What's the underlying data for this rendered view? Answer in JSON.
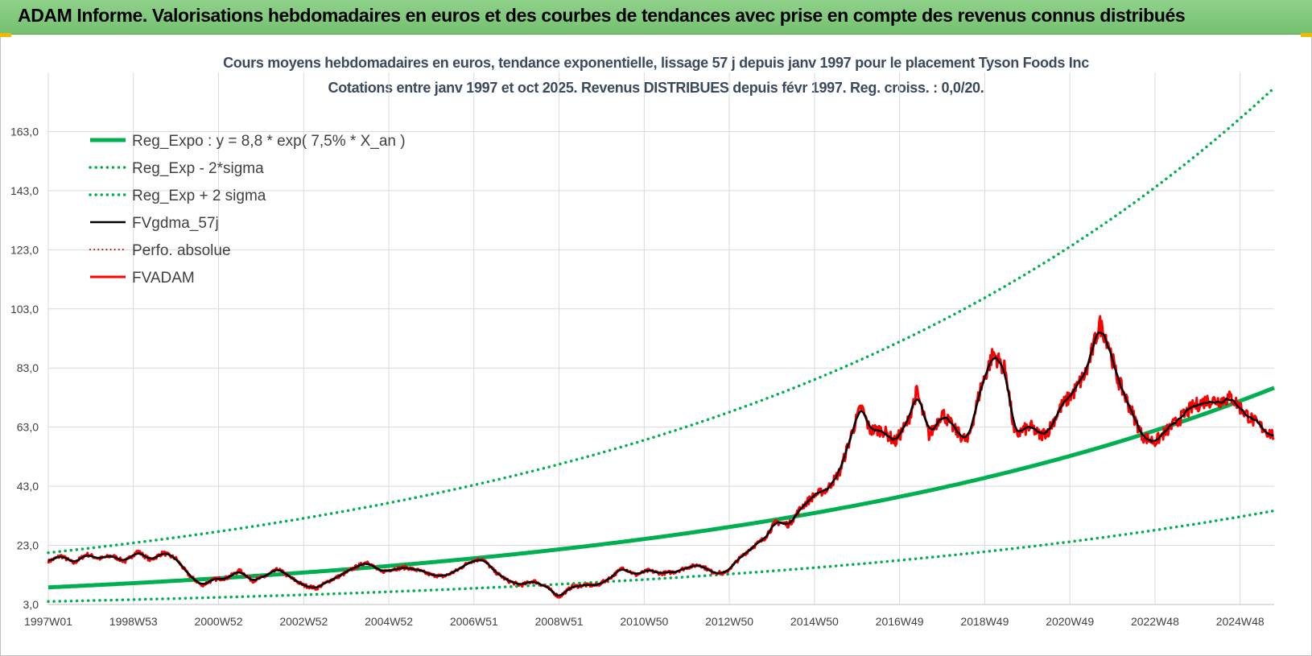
{
  "banner": {
    "title": "ADAM Informe. Valorisations hebdomadaires en euros et des courbes de tendances avec prise en compte des revenus connus distribués"
  },
  "colors": {
    "banner_bg": "#7fc97f",
    "regression": "#00b050",
    "smoothed": "#000000",
    "fvadam": "#ff0000",
    "perfo": "#c00000",
    "grid": "#d9d9d9"
  },
  "chart_data": {
    "type": "line",
    "title": "Cours moyens hebdomadaires en euros, tendance exponentielle, lissage 57 j depuis janv 1997 pour le placement Tyson Foods Inc",
    "subtitle": "Cotations entre janv 1997 et oct 2025. Revenus DISTRIBUES depuis févr 1997. Reg. croiss. : 0,0/20.",
    "xlabel": "",
    "ylabel": "",
    "grid": true,
    "legend_position": "top-left",
    "x_range": [
      1997.0,
      2025.8
    ],
    "ylim": [
      3.0,
      183.0
    ],
    "y_ticks": [
      "3,0",
      "23,0",
      "43,0",
      "63,0",
      "83,0",
      "103,0",
      "123,0",
      "143,0",
      "163,0"
    ],
    "y_tick_values": [
      3,
      23,
      43,
      63,
      83,
      103,
      123,
      143,
      163
    ],
    "x_ticks": [
      "1997W01",
      "1998W53",
      "2000W52",
      "2002W52",
      "2004W52",
      "2006W51",
      "2008W51",
      "2010W50",
      "2012W50",
      "2014W50",
      "2016W49",
      "2018W49",
      "2020W49",
      "2022W48",
      "2024W48"
    ],
    "x_tick_values": [
      1997.0,
      1999.0,
      2001.0,
      2003.0,
      2005.0,
      2007.0,
      2009.0,
      2011.0,
      2013.0,
      2015.0,
      2017.0,
      2019.0,
      2021.0,
      2023.0,
      2025.0
    ],
    "regression": {
      "a": 8.8,
      "rate": 0.075,
      "band_mult_low": 0.455,
      "band_mult_high": 2.33
    },
    "series": [
      {
        "name": "Reg_Expo : y = 8,8 * exp( 7,5% *  X_an )",
        "style": "solid-thick",
        "color": "#00b050",
        "kind": "reg"
      },
      {
        "name": "Reg_Exp - 2*sigma",
        "style": "dotted",
        "color": "#00b050",
        "kind": "low"
      },
      {
        "name": "Reg_Exp + 2 sigma",
        "style": "dotted",
        "color": "#00b050",
        "kind": "high"
      },
      {
        "name": "FVgdma_57j",
        "style": "solid",
        "color": "#000000",
        "kind": "smooth"
      },
      {
        "name": "Perfo. absolue",
        "style": "dotted-thin",
        "color": "#c00000",
        "kind": "perfo"
      },
      {
        "name": "FVADAM",
        "style": "solid-thick",
        "color": "#ff0000",
        "kind": "price"
      }
    ],
    "price_x": [
      1997.0,
      1997.3,
      1997.6,
      1997.9,
      1998.2,
      1998.5,
      1998.8,
      1999.1,
      1999.4,
      1999.7,
      2000.0,
      2000.3,
      2000.6,
      2000.9,
      2001.2,
      2001.5,
      2001.8,
      2002.1,
      2002.4,
      2002.7,
      2003.0,
      2003.3,
      2003.6,
      2003.9,
      2004.2,
      2004.5,
      2004.8,
      2005.1,
      2005.4,
      2005.7,
      2006.0,
      2006.3,
      2006.6,
      2006.9,
      2007.2,
      2007.5,
      2007.8,
      2008.1,
      2008.4,
      2008.7,
      2009.0,
      2009.3,
      2009.6,
      2009.9,
      2010.2,
      2010.5,
      2010.8,
      2011.1,
      2011.4,
      2011.7,
      2012.0,
      2012.3,
      2012.6,
      2012.9,
      2013.2,
      2013.5,
      2013.8,
      2014.1,
      2014.4,
      2014.7,
      2015.0,
      2015.3,
      2015.6,
      2015.9,
      2016.1,
      2016.3,
      2016.6,
      2016.9,
      2017.2,
      2017.4,
      2017.7,
      2018.0,
      2018.3,
      2018.6,
      2018.9,
      2019.2,
      2019.5,
      2019.7,
      2019.9,
      2020.1,
      2020.3,
      2020.5,
      2020.8,
      2021.1,
      2021.4,
      2021.7,
      2021.9,
      2022.1,
      2022.4,
      2022.7,
      2023.0,
      2023.3,
      2023.6,
      2023.9,
      2024.2,
      2024.5,
      2024.8,
      2025.1,
      2025.4,
      2025.8
    ],
    "price_y": [
      17.5,
      19.5,
      17.0,
      20.0,
      18.5,
      19.5,
      17.5,
      21.0,
      18.0,
      20.5,
      18.5,
      13.0,
      9.5,
      11.5,
      12.0,
      14.5,
      11.0,
      12.5,
      15.0,
      12.0,
      9.5,
      8.5,
      11.0,
      13.0,
      15.5,
      17.5,
      14.0,
      15.0,
      15.5,
      14.5,
      13.0,
      12.5,
      14.5,
      17.5,
      18.5,
      14.0,
      11.0,
      9.5,
      11.0,
      9.0,
      5.5,
      9.0,
      9.5,
      9.5,
      12.0,
      15.5,
      13.0,
      14.5,
      13.5,
      14.0,
      15.5,
      16.5,
      14.0,
      13.5,
      18.0,
      22.0,
      25.0,
      31.0,
      30.0,
      36.0,
      40.0,
      42.0,
      48.0,
      62.0,
      70.0,
      62.0,
      62.0,
      58.0,
      65.0,
      75.0,
      60.0,
      68.0,
      62.0,
      58.0,
      76.0,
      88.0,
      82.0,
      60.0,
      62.0,
      63.0,
      60.0,
      62.0,
      70.0,
      75.0,
      82.0,
      98.0,
      92.0,
      80.0,
      70.0,
      60.0,
      58.0,
      62.0,
      66.0,
      70.0,
      72.0,
      72.0,
      73.0,
      68.0,
      64.0,
      60.0
    ]
  }
}
